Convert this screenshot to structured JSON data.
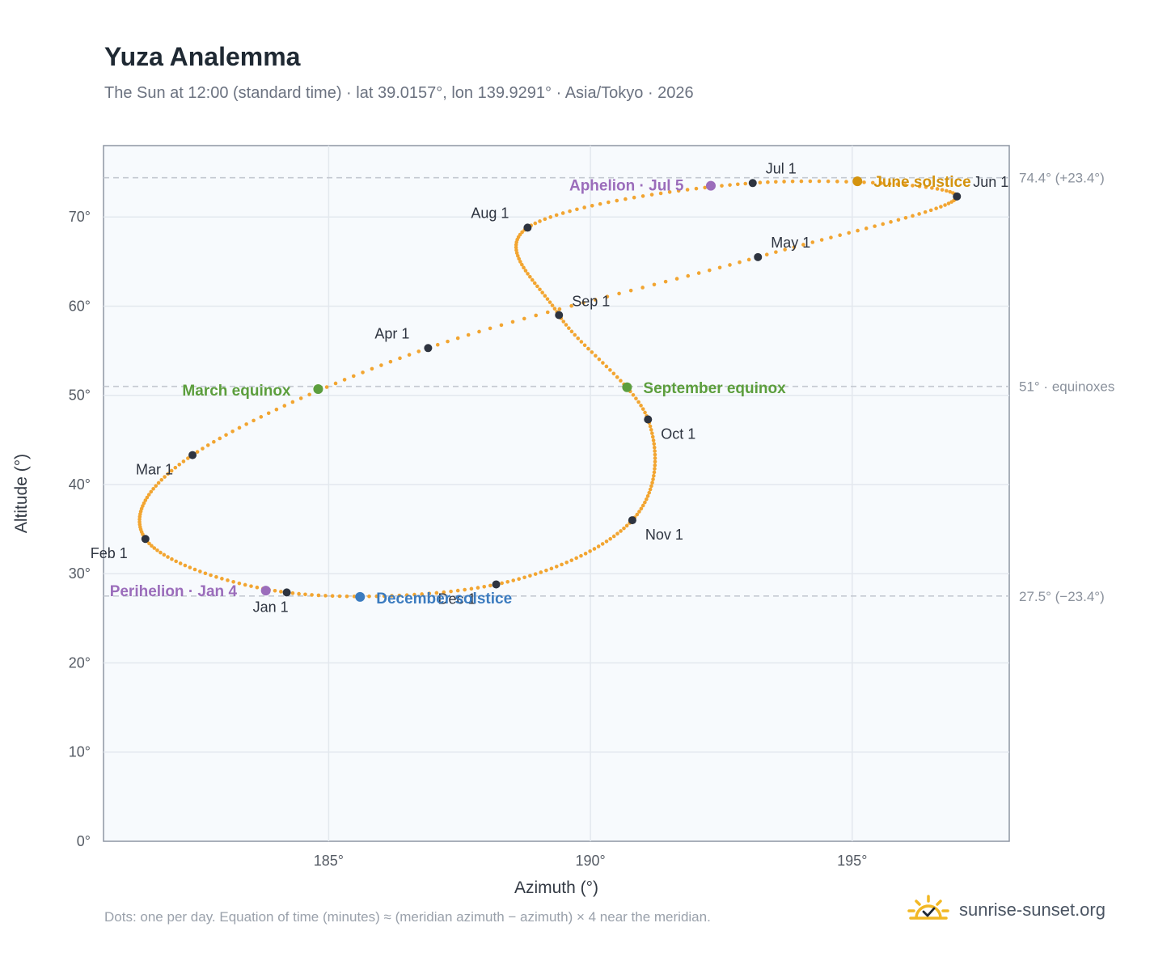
{
  "title": "Yuza Analemma",
  "subtitle": "The Sun at 12:00 (standard time) · lat 39.0157°, lon 139.9291° · Asia/Tokyo · 2026",
  "footnote": "Dots: one per day. Equation of time (minutes) ≈ (meridian azimuth − azimuth) × 4 near the meridian.",
  "brand": {
    "text": "sunrise-sunset.org",
    "icon": "sun-check-icon"
  },
  "colors": {
    "path": "#f2a531",
    "month_marker": "#2e3440",
    "equinox": "#5c9e3d",
    "june_solstice": "#d4930e",
    "december_solstice": "#3b7bbf",
    "apsis": "#9b6dbb",
    "reference_line": "#c4c9d1",
    "plot_background": "#f7fafd"
  },
  "chart_data": {
    "type": "scatter",
    "xlabel": "Azimuth (°)",
    "ylabel": "Altitude (°)",
    "xlim": [
      180.7,
      198.0
    ],
    "ylim": [
      0,
      78
    ],
    "xticks": [
      {
        "value": 185,
        "label": "185°"
      },
      {
        "value": 190,
        "label": "190°"
      },
      {
        "value": 195,
        "label": "195°"
      }
    ],
    "yticks": [
      {
        "value": 0,
        "label": "0°"
      },
      {
        "value": 10,
        "label": "10°"
      },
      {
        "value": 20,
        "label": "20°"
      },
      {
        "value": 30,
        "label": "30°"
      },
      {
        "value": 40,
        "label": "40°"
      },
      {
        "value": 50,
        "label": "50°"
      },
      {
        "value": 60,
        "label": "60°"
      },
      {
        "value": 70,
        "label": "70°"
      }
    ],
    "grid": true,
    "reference_lines": [
      {
        "y": 74.4,
        "label": "74.4° (+23.4°)"
      },
      {
        "y": 51.0,
        "label": "51° · equinoxes"
      },
      {
        "y": 27.5,
        "label": "27.5° (−23.4°)"
      }
    ],
    "month_markers": [
      {
        "label": "Jan 1",
        "x": 184.2,
        "y": 27.9
      },
      {
        "label": "Feb 1",
        "x": 181.5,
        "y": 33.9
      },
      {
        "label": "Mar 1",
        "x": 182.4,
        "y": 43.3
      },
      {
        "label": "Apr 1",
        "x": 186.9,
        "y": 55.3
      },
      {
        "label": "May 1",
        "x": 193.2,
        "y": 65.5
      },
      {
        "label": "Jun 1",
        "x": 197.0,
        "y": 72.3
      },
      {
        "label": "Jul 1",
        "x": 193.1,
        "y": 73.8
      },
      {
        "label": "Aug 1",
        "x": 188.8,
        "y": 68.8
      },
      {
        "label": "Sep 1",
        "x": 189.4,
        "y": 59.0
      },
      {
        "label": "Oct 1",
        "x": 191.1,
        "y": 47.3
      },
      {
        "label": "Nov 1",
        "x": 190.8,
        "y": 36.0
      },
      {
        "label": "Dec 1",
        "x": 188.2,
        "y": 28.8
      }
    ],
    "events": [
      {
        "label": "March equinox",
        "x": 184.8,
        "y": 50.7,
        "color_key": "equinox"
      },
      {
        "label": "September equinox",
        "x": 190.7,
        "y": 50.9,
        "color_key": "equinox"
      },
      {
        "label": "June solstice",
        "x": 195.1,
        "y": 74.0,
        "color_key": "june_solstice"
      },
      {
        "label": "December solstice",
        "x": 185.6,
        "y": 27.4,
        "color_key": "december_solstice"
      },
      {
        "label": "Aphelion · Jul 5",
        "x": 192.3,
        "y": 73.5,
        "color_key": "apsis"
      },
      {
        "label": "Perihelion · Jan 4",
        "x": 183.8,
        "y": 28.1,
        "color_key": "apsis"
      }
    ],
    "daily_path": [
      [
        184.2,
        27.9
      ],
      [
        181.5,
        33.9
      ],
      [
        182.4,
        43.3
      ],
      [
        186.9,
        55.3
      ],
      [
        193.2,
        65.5
      ],
      [
        197.0,
        72.3
      ],
      [
        193.1,
        73.8
      ],
      [
        188.8,
        68.8
      ],
      [
        189.4,
        59.0
      ],
      [
        191.1,
        47.3
      ],
      [
        190.8,
        36.0
      ],
      [
        188.2,
        28.8
      ]
    ]
  }
}
